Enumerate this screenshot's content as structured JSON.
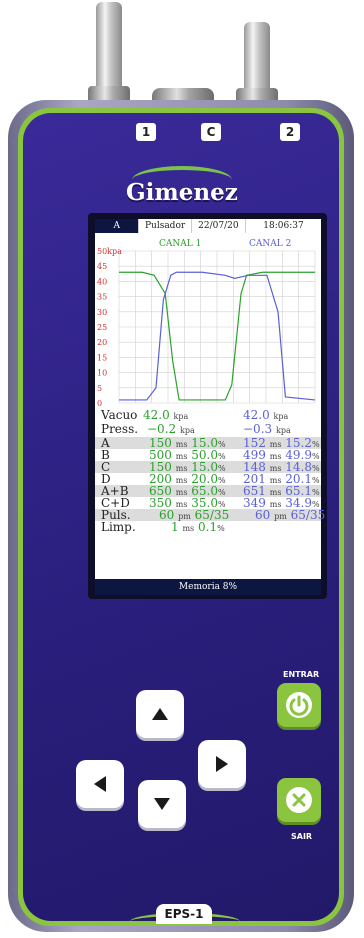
{
  "device": {
    "model": "EPS-1",
    "brand": "Gimenez",
    "ports": [
      "1",
      "C",
      "2"
    ],
    "accent": "#8bc53f",
    "body_color": "#2a1f7d"
  },
  "status": {
    "mode": "A",
    "device_label": "Pulsador",
    "date": "22/07/20",
    "time": "18:06:37"
  },
  "chart_data": {
    "type": "line",
    "ylabel": "kpa",
    "ylim": [
      0,
      50
    ],
    "yticks": [
      "50kpa",
      "45",
      "40",
      "35",
      "30",
      "25",
      "20",
      "15",
      "10",
      "5",
      "0"
    ],
    "grid": true,
    "series": [
      {
        "name": "CANAL 1",
        "color": "#2aa12a",
        "x": [
          0,
          25,
          38,
          50,
          58,
          65,
          115,
          122,
          132,
          138,
          155,
          178,
          212
        ],
        "y": [
          43,
          43,
          42,
          36,
          14,
          1,
          1,
          6,
          36,
          42,
          43,
          43,
          43
        ]
      },
      {
        "name": "CANAL 2",
        "color": "#5a60d8",
        "x": [
          0,
          30,
          40,
          48,
          56,
          62,
          90,
          115,
          125,
          140,
          160,
          172,
          180,
          212
        ],
        "y": [
          1,
          1,
          5,
          34,
          42,
          43,
          43,
          42,
          41,
          42,
          42,
          30,
          2,
          1
        ]
      }
    ]
  },
  "readouts": {
    "vacuo": {
      "label": "Vacuo",
      "c1": "42.0",
      "c1_unit": "kpa",
      "c2": "42.0",
      "c2_unit": "kpa"
    },
    "press": {
      "label": "Press.",
      "c1": "−0.2",
      "c1_unit": "kpa",
      "c2": "−0.3",
      "c2_unit": "kpa"
    },
    "a": {
      "label": "A",
      "c1_ms": "150",
      "c1_pct": "15.0",
      "c2_ms": "152",
      "c2_pct": "15.2"
    },
    "b": {
      "label": "B",
      "c1_ms": "500",
      "c1_pct": "50.0",
      "c2_ms": "499",
      "c2_pct": "49.9"
    },
    "c": {
      "label": "C",
      "c1_ms": "150",
      "c1_pct": "15.0",
      "c2_ms": "148",
      "c2_pct": "14.8"
    },
    "d": {
      "label": "D",
      "c1_ms": "200",
      "c1_pct": "20.0",
      "c2_ms": "201",
      "c2_pct": "20.1"
    },
    "ab": {
      "label": "A+B",
      "c1_ms": "650",
      "c1_pct": "65.0",
      "c2_ms": "651",
      "c2_pct": "65.1"
    },
    "cd": {
      "label": "C+D",
      "c1_ms": "350",
      "c1_pct": "35.0",
      "c2_ms": "349",
      "c2_pct": "34.9"
    },
    "puls": {
      "label": "Puls.",
      "c1": "60",
      "c1_unit": "pm",
      "c1_ratio": "65/35",
      "c2": "60",
      "c2_unit": "pm",
      "c2_ratio": "65/35"
    },
    "limp": {
      "label": "Limp.",
      "c1": "1",
      "c1_unit": "ms",
      "c1_pct": "0.1"
    },
    "unit_ms": "ms",
    "unit_pct": "%"
  },
  "footer": {
    "memory": "Memoria 8%"
  },
  "keys": {
    "enter_label": "ENTRAR",
    "exit_label": "SAIR",
    "up": "arrow-up-icon",
    "down": "arrow-down-icon",
    "left": "arrow-left-icon",
    "right": "arrow-right-icon",
    "enter_icon": "power-icon",
    "exit_icon": "close-icon"
  }
}
